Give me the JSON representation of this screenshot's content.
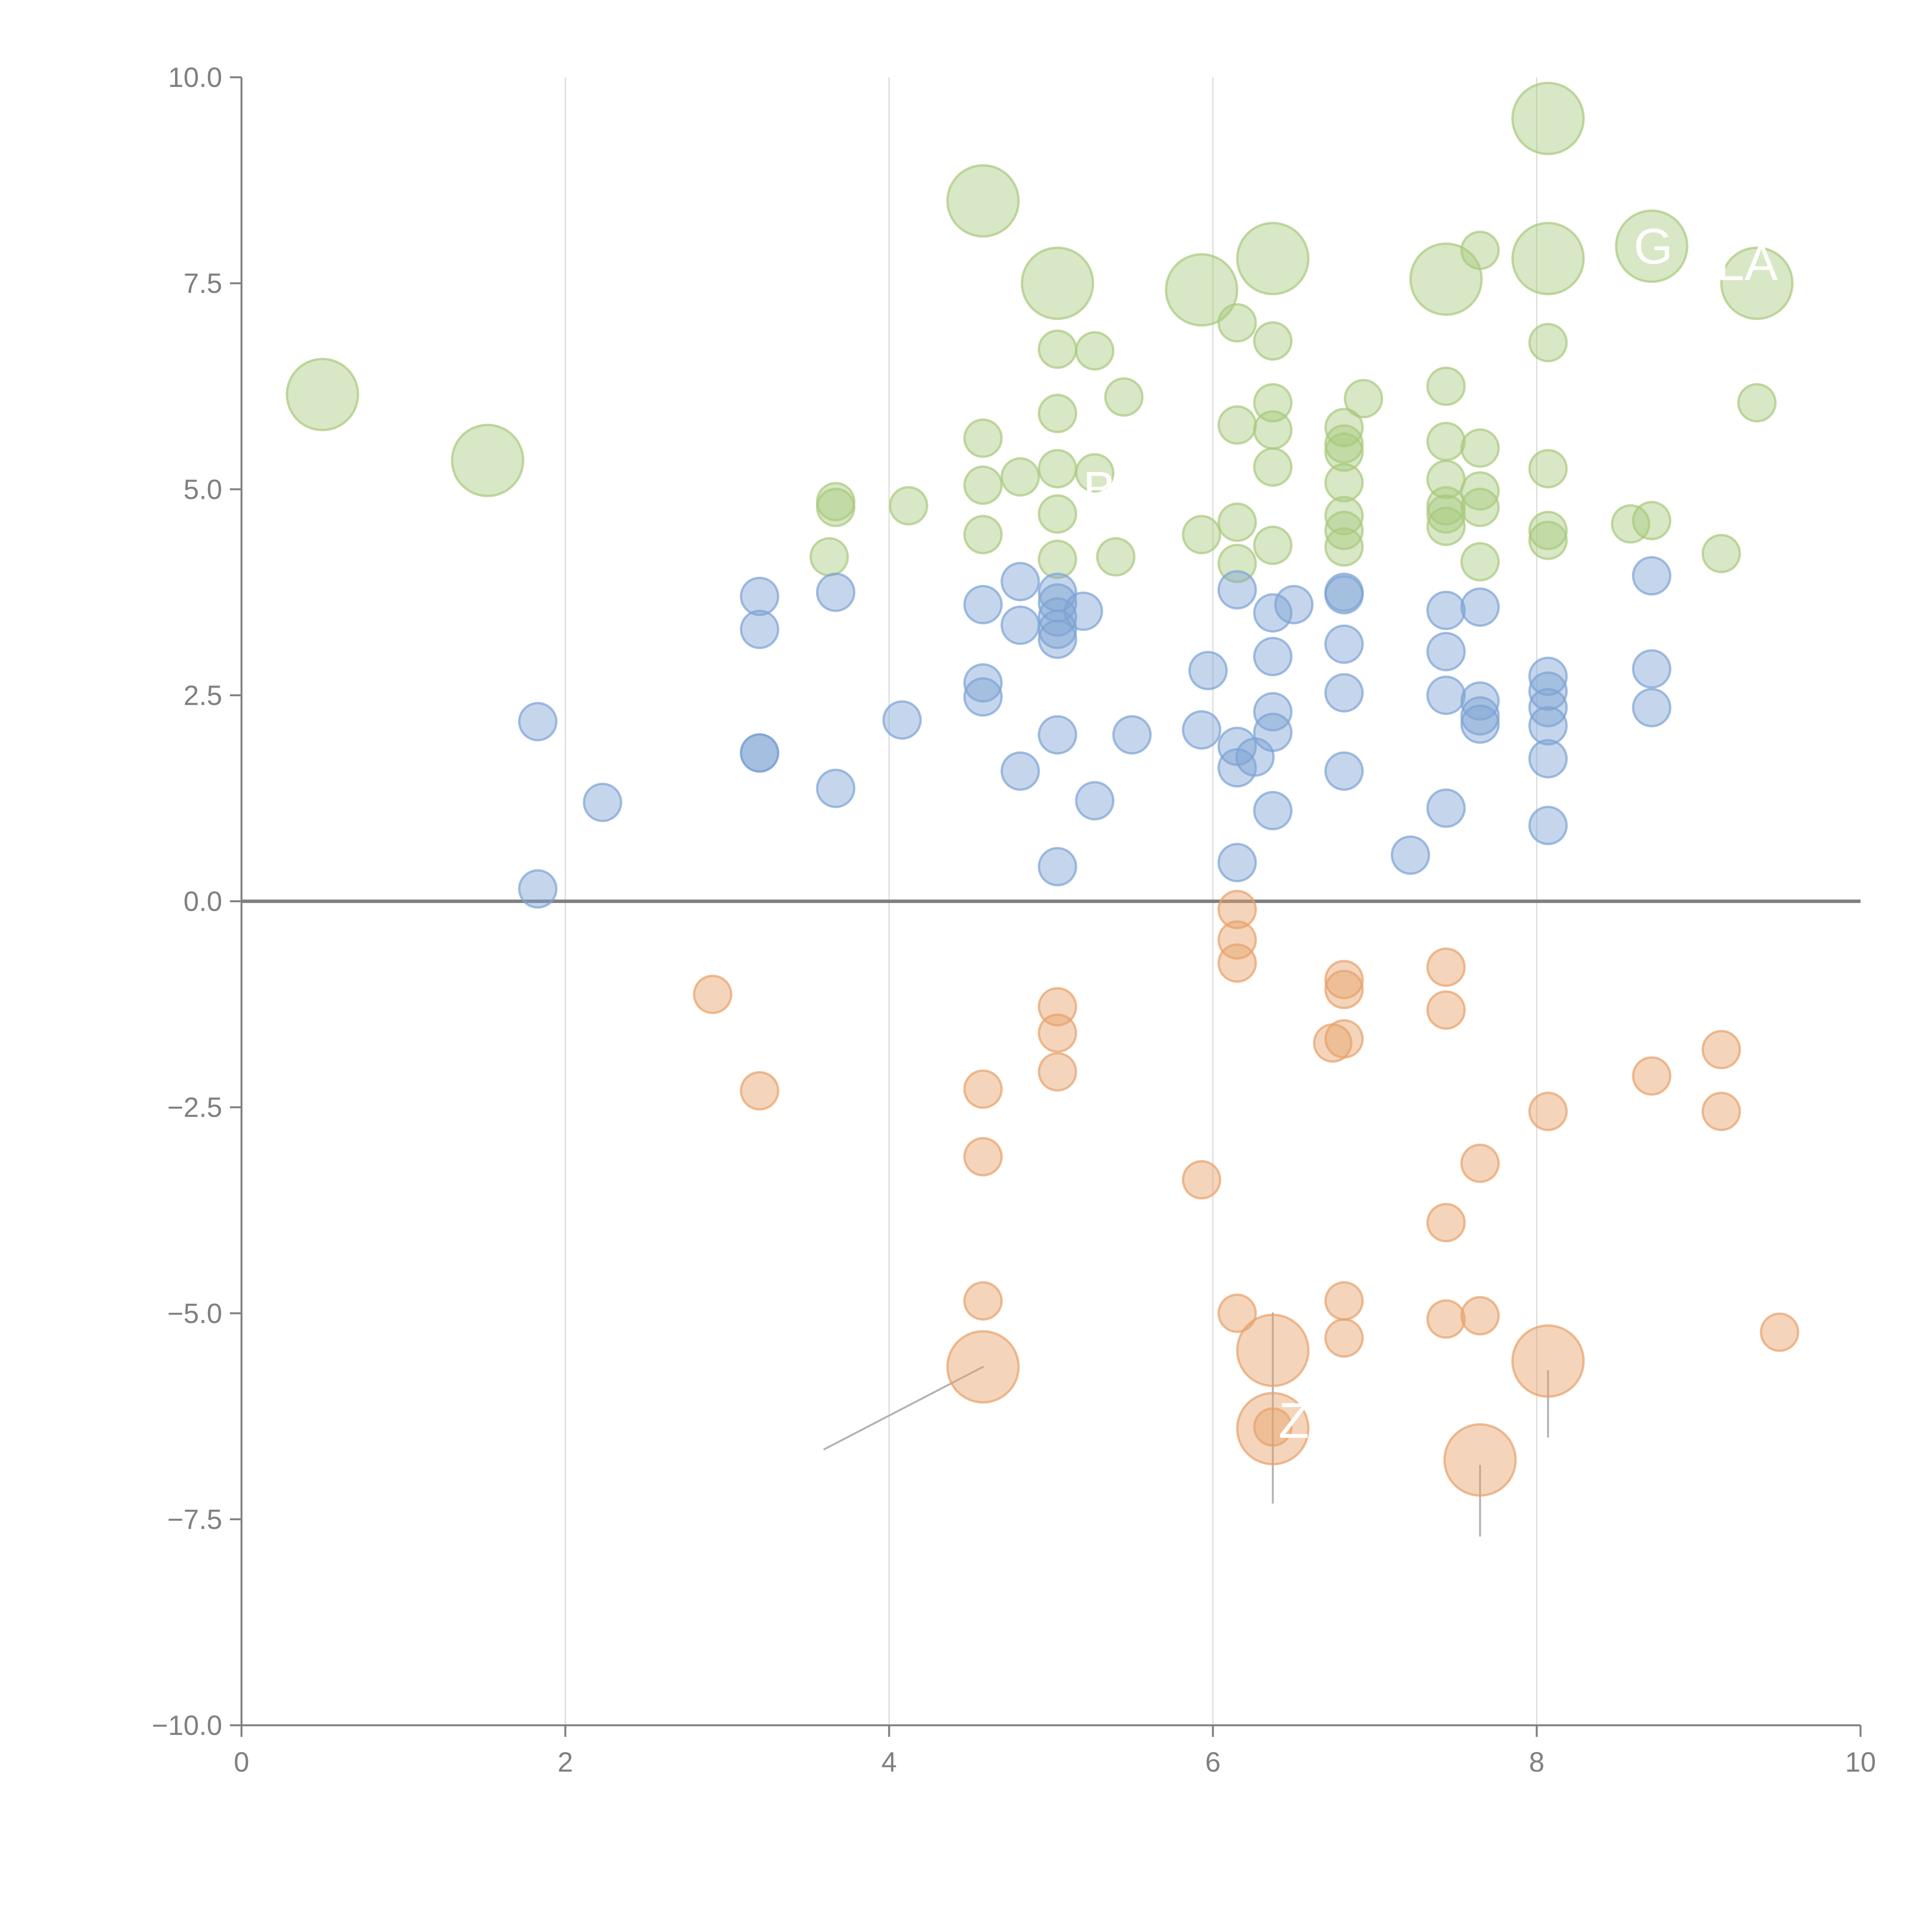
{
  "chart_data": {
    "type": "scatter",
    "title": "",
    "xlabel": "",
    "ylabel": "",
    "xlim": [
      0,
      10
    ],
    "ylim": [
      -10,
      10
    ],
    "grid": true,
    "legend": "none",
    "x_ticks": [
      "0",
      "2",
      "4",
      "6",
      "8",
      "10"
    ],
    "y_ticks": [
      "10.0",
      "7.5",
      "5.0",
      "2.5",
      "0.0",
      "−2.5",
      "−5.0",
      "−7.5",
      "−10.0"
    ],
    "colors": {
      "green": "#a9c97e",
      "blue": "#7ea3d4",
      "orange": "#e7a16b"
    },
    "series": [
      {
        "name": "green",
        "color": "#a9c97e",
        "points": [
          {
            "x": 0.5,
            "y": 6.15,
            "s": 2
          },
          {
            "x": 1.52,
            "y": 5.35,
            "s": 2
          },
          {
            "x": 4.58,
            "y": 8.5,
            "s": 2
          },
          {
            "x": 5.04,
            "y": 7.5,
            "s": 2
          },
          {
            "x": 5.93,
            "y": 7.42,
            "s": 2
          },
          {
            "x": 6.37,
            "y": 7.8,
            "s": 2
          },
          {
            "x": 7.44,
            "y": 7.55,
            "s": 2
          },
          {
            "x": 8.07,
            "y": 7.8,
            "s": 2
          },
          {
            "x": 8.07,
            "y": 9.5,
            "s": 2
          },
          {
            "x": 8.71,
            "y": 7.95,
            "s": 2
          },
          {
            "x": 9.36,
            "y": 7.5,
            "s": 2
          },
          {
            "x": 7.65,
            "y": 7.9,
            "s": 1
          },
          {
            "x": 6.15,
            "y": 7.02,
            "s": 1
          },
          {
            "x": 6.37,
            "y": 6.8,
            "s": 1
          },
          {
            "x": 5.04,
            "y": 6.7,
            "s": 1
          },
          {
            "x": 5.27,
            "y": 6.68,
            "s": 1
          },
          {
            "x": 5.45,
            "y": 6.12,
            "s": 1
          },
          {
            "x": 5.04,
            "y": 5.92,
            "s": 1
          },
          {
            "x": 4.58,
            "y": 5.62,
            "s": 1
          },
          {
            "x": 6.15,
            "y": 5.78,
            "s": 1
          },
          {
            "x": 6.37,
            "y": 6.05,
            "s": 1
          },
          {
            "x": 6.37,
            "y": 5.72,
            "s": 1
          },
          {
            "x": 6.37,
            "y": 5.27,
            "s": 1
          },
          {
            "x": 6.81,
            "y": 5.75,
            "s": 1
          },
          {
            "x": 6.81,
            "y": 5.55,
            "s": 1
          },
          {
            "x": 6.81,
            "y": 5.45,
            "s": 1
          },
          {
            "x": 6.81,
            "y": 5.08,
            "s": 1
          },
          {
            "x": 6.93,
            "y": 6.1,
            "s": 1
          },
          {
            "x": 7.44,
            "y": 6.25,
            "s": 1
          },
          {
            "x": 7.44,
            "y": 5.58,
            "s": 1
          },
          {
            "x": 7.65,
            "y": 5.5,
            "s": 1
          },
          {
            "x": 8.07,
            "y": 6.78,
            "s": 1
          },
          {
            "x": 9.36,
            "y": 6.05,
            "s": 1
          },
          {
            "x": 4.58,
            "y": 5.05,
            "s": 1
          },
          {
            "x": 4.81,
            "y": 5.15,
            "s": 1
          },
          {
            "x": 5.04,
            "y": 5.25,
            "s": 1
          },
          {
            "x": 5.27,
            "y": 5.2,
            "s": 1
          },
          {
            "x": 5.04,
            "y": 4.7,
            "s": 1
          },
          {
            "x": 3.67,
            "y": 4.85,
            "s": 1
          },
          {
            "x": 3.67,
            "y": 4.78,
            "s": 1
          },
          {
            "x": 4.12,
            "y": 4.8,
            "s": 1
          },
          {
            "x": 3.63,
            "y": 4.18,
            "s": 1
          },
          {
            "x": 4.58,
            "y": 4.45,
            "s": 1
          },
          {
            "x": 5.04,
            "y": 4.15,
            "s": 1
          },
          {
            "x": 5.4,
            "y": 4.18,
            "s": 1
          },
          {
            "x": 5.93,
            "y": 4.45,
            "s": 1
          },
          {
            "x": 6.15,
            "y": 4.6,
            "s": 1
          },
          {
            "x": 6.15,
            "y": 4.1,
            "s": 1
          },
          {
            "x": 6.37,
            "y": 4.32,
            "s": 1
          },
          {
            "x": 6.81,
            "y": 4.68,
            "s": 1
          },
          {
            "x": 6.81,
            "y": 4.5,
            "s": 1
          },
          {
            "x": 6.81,
            "y": 4.3,
            "s": 1
          },
          {
            "x": 7.44,
            "y": 5.12,
            "s": 1
          },
          {
            "x": 7.44,
            "y": 4.8,
            "s": 1
          },
          {
            "x": 7.44,
            "y": 4.7,
            "s": 1
          },
          {
            "x": 7.44,
            "y": 4.55,
            "s": 1
          },
          {
            "x": 7.65,
            "y": 4.98,
            "s": 1
          },
          {
            "x": 7.65,
            "y": 4.78,
            "s": 1
          },
          {
            "x": 7.65,
            "y": 4.12,
            "s": 1
          },
          {
            "x": 8.07,
            "y": 5.25,
            "s": 1
          },
          {
            "x": 8.07,
            "y": 4.5,
            "s": 1
          },
          {
            "x": 8.07,
            "y": 4.38,
            "s": 1
          },
          {
            "x": 8.58,
            "y": 4.58,
            "s": 1
          },
          {
            "x": 8.71,
            "y": 4.62,
            "s": 1
          },
          {
            "x": 9.14,
            "y": 4.22,
            "s": 1
          }
        ]
      },
      {
        "name": "blue",
        "color": "#7ea3d4",
        "points": [
          {
            "x": 1.83,
            "y": 2.18,
            "s": 1
          },
          {
            "x": 2.23,
            "y": 1.2,
            "s": 1
          },
          {
            "x": 1.83,
            "y": 0.15,
            "s": 1
          },
          {
            "x": 3.2,
            "y": 3.7,
            "s": 1
          },
          {
            "x": 3.2,
            "y": 3.3,
            "s": 1
          },
          {
            "x": 3.2,
            "y": 1.8,
            "s": 1
          },
          {
            "x": 3.2,
            "y": 1.8,
            "s": 1
          },
          {
            "x": 3.67,
            "y": 3.75,
            "s": 1
          },
          {
            "x": 3.67,
            "y": 1.37,
            "s": 1
          },
          {
            "x": 4.08,
            "y": 2.2,
            "s": 1
          },
          {
            "x": 4.58,
            "y": 3.6,
            "s": 1
          },
          {
            "x": 4.58,
            "y": 2.65,
            "s": 1
          },
          {
            "x": 4.58,
            "y": 2.48,
            "s": 1
          },
          {
            "x": 4.81,
            "y": 3.88,
            "s": 1
          },
          {
            "x": 4.81,
            "y": 3.35,
            "s": 1
          },
          {
            "x": 4.81,
            "y": 1.58,
            "s": 1
          },
          {
            "x": 5.04,
            "y": 3.75,
            "s": 1
          },
          {
            "x": 5.04,
            "y": 3.62,
            "s": 1
          },
          {
            "x": 5.04,
            "y": 3.45,
            "s": 1
          },
          {
            "x": 5.04,
            "y": 3.3,
            "s": 1
          },
          {
            "x": 5.04,
            "y": 3.18,
            "s": 1
          },
          {
            "x": 5.04,
            "y": 2.02,
            "s": 1
          },
          {
            "x": 5.04,
            "y": 0.42,
            "s": 1
          },
          {
            "x": 5.2,
            "y": 3.52,
            "s": 1
          },
          {
            "x": 5.27,
            "y": 1.22,
            "s": 1
          },
          {
            "x": 5.5,
            "y": 2.02,
            "s": 1
          },
          {
            "x": 5.93,
            "y": 2.08,
            "s": 1
          },
          {
            "x": 5.97,
            "y": 2.8,
            "s": 1
          },
          {
            "x": 6.15,
            "y": 3.78,
            "s": 1
          },
          {
            "x": 6.15,
            "y": 1.88,
            "s": 1
          },
          {
            "x": 6.15,
            "y": 1.62,
            "s": 1
          },
          {
            "x": 6.15,
            "y": 0.47,
            "s": 1
          },
          {
            "x": 6.26,
            "y": 1.75,
            "s": 1
          },
          {
            "x": 6.37,
            "y": 3.5,
            "s": 1
          },
          {
            "x": 6.37,
            "y": 2.97,
            "s": 1
          },
          {
            "x": 6.37,
            "y": 2.3,
            "s": 1
          },
          {
            "x": 6.37,
            "y": 2.05,
            "s": 1
          },
          {
            "x": 6.37,
            "y": 1.1,
            "s": 1
          },
          {
            "x": 6.5,
            "y": 3.6,
            "s": 1
          },
          {
            "x": 6.81,
            "y": 3.75,
            "s": 1
          },
          {
            "x": 6.81,
            "y": 3.72,
            "s": 1
          },
          {
            "x": 6.81,
            "y": 3.12,
            "s": 1
          },
          {
            "x": 6.81,
            "y": 2.53,
            "s": 1
          },
          {
            "x": 6.81,
            "y": 1.58,
            "s": 1
          },
          {
            "x": 7.22,
            "y": 0.56,
            "s": 1
          },
          {
            "x": 7.44,
            "y": 3.53,
            "s": 1
          },
          {
            "x": 7.44,
            "y": 3.03,
            "s": 1
          },
          {
            "x": 7.44,
            "y": 2.5,
            "s": 1
          },
          {
            "x": 7.44,
            "y": 1.13,
            "s": 1
          },
          {
            "x": 7.65,
            "y": 3.57,
            "s": 1
          },
          {
            "x": 7.65,
            "y": 2.43,
            "s": 1
          },
          {
            "x": 7.65,
            "y": 2.25,
            "s": 1
          },
          {
            "x": 7.65,
            "y": 2.15,
            "s": 1
          },
          {
            "x": 8.07,
            "y": 2.73,
            "s": 1
          },
          {
            "x": 8.07,
            "y": 2.55,
            "s": 1
          },
          {
            "x": 8.07,
            "y": 2.35,
            "s": 1
          },
          {
            "x": 8.07,
            "y": 2.13,
            "s": 1
          },
          {
            "x": 8.07,
            "y": 1.73,
            "s": 1
          },
          {
            "x": 8.07,
            "y": 0.92,
            "s": 1
          },
          {
            "x": 8.71,
            "y": 3.95,
            "s": 1
          },
          {
            "x": 8.71,
            "y": 2.82,
            "s": 1
          },
          {
            "x": 8.71,
            "y": 2.35,
            "s": 1
          }
        ]
      },
      {
        "name": "orange",
        "color": "#e7a16b",
        "points": [
          {
            "x": 2.91,
            "y": -1.13,
            "s": 1
          },
          {
            "x": 3.2,
            "y": -2.3,
            "s": 1
          },
          {
            "x": 4.58,
            "y": -2.28,
            "s": 1
          },
          {
            "x": 4.58,
            "y": -3.1,
            "s": 1
          },
          {
            "x": 4.58,
            "y": -4.85,
            "s": 1
          },
          {
            "x": 4.58,
            "y": -5.65,
            "s": 2
          },
          {
            "x": 5.04,
            "y": -1.28,
            "s": 1
          },
          {
            "x": 5.04,
            "y": -1.6,
            "s": 1
          },
          {
            "x": 5.04,
            "y": -2.07,
            "s": 1
          },
          {
            "x": 5.93,
            "y": -3.38,
            "s": 1
          },
          {
            "x": 6.15,
            "y": -0.1,
            "s": 1
          },
          {
            "x": 6.15,
            "y": -0.47,
            "s": 1
          },
          {
            "x": 6.15,
            "y": -0.75,
            "s": 1
          },
          {
            "x": 6.15,
            "y": -5.0,
            "s": 1
          },
          {
            "x": 6.37,
            "y": -5.45,
            "s": 2
          },
          {
            "x": 6.37,
            "y": -6.38,
            "s": 1
          },
          {
            "x": 6.37,
            "y": -6.4,
            "s": 2
          },
          {
            "x": 6.74,
            "y": -1.72,
            "s": 1
          },
          {
            "x": 6.81,
            "y": -0.95,
            "s": 1
          },
          {
            "x": 6.81,
            "y": -1.07,
            "s": 1
          },
          {
            "x": 6.81,
            "y": -1.67,
            "s": 1
          },
          {
            "x": 6.81,
            "y": -4.85,
            "s": 1
          },
          {
            "x": 6.81,
            "y": -5.3,
            "s": 1
          },
          {
            "x": 7.44,
            "y": -0.8,
            "s": 1
          },
          {
            "x": 7.44,
            "y": -1.32,
            "s": 1
          },
          {
            "x": 7.44,
            "y": -3.9,
            "s": 1
          },
          {
            "x": 7.44,
            "y": -5.07,
            "s": 1
          },
          {
            "x": 7.65,
            "y": -3.18,
            "s": 1
          },
          {
            "x": 7.65,
            "y": -5.03,
            "s": 1
          },
          {
            "x": 7.65,
            "y": -6.78,
            "s": 2
          },
          {
            "x": 8.07,
            "y": -2.55,
            "s": 1
          },
          {
            "x": 8.07,
            "y": -5.58,
            "s": 2
          },
          {
            "x": 8.71,
            "y": -2.12,
            "s": 1
          },
          {
            "x": 9.14,
            "y": -1.8,
            "s": 1
          },
          {
            "x": 9.14,
            "y": -2.55,
            "s": 1
          },
          {
            "x": 9.5,
            "y": -5.23,
            "s": 1
          }
        ]
      }
    ],
    "annotations": [
      {
        "text": "G",
        "x": 8.72,
        "y": 7.95
      },
      {
        "text": "LA",
        "x": 9.3,
        "y": 7.75
      },
      {
        "text": "B",
        "x": 5.3,
        "y": 5.0
      },
      {
        "text": "Z",
        "x": 6.5,
        "y": -6.3
      }
    ],
    "leaders": [
      {
        "from": [
          4.58,
          -5.65
        ],
        "to": [
          3.6,
          -6.65
        ],
        "color": "#b3b3b3"
      },
      {
        "from": [
          6.37,
          -5.0
        ],
        "to": [
          6.37,
          -7.3
        ],
        "color": "#b3b3b3"
      },
      {
        "from": [
          7.65,
          -6.85
        ],
        "to": [
          7.65,
          -7.7
        ],
        "color": "#b3b3b3"
      },
      {
        "from": [
          8.07,
          -5.7
        ],
        "to": [
          8.07,
          -6.5
        ],
        "color": "#b3b3b3"
      }
    ]
  }
}
